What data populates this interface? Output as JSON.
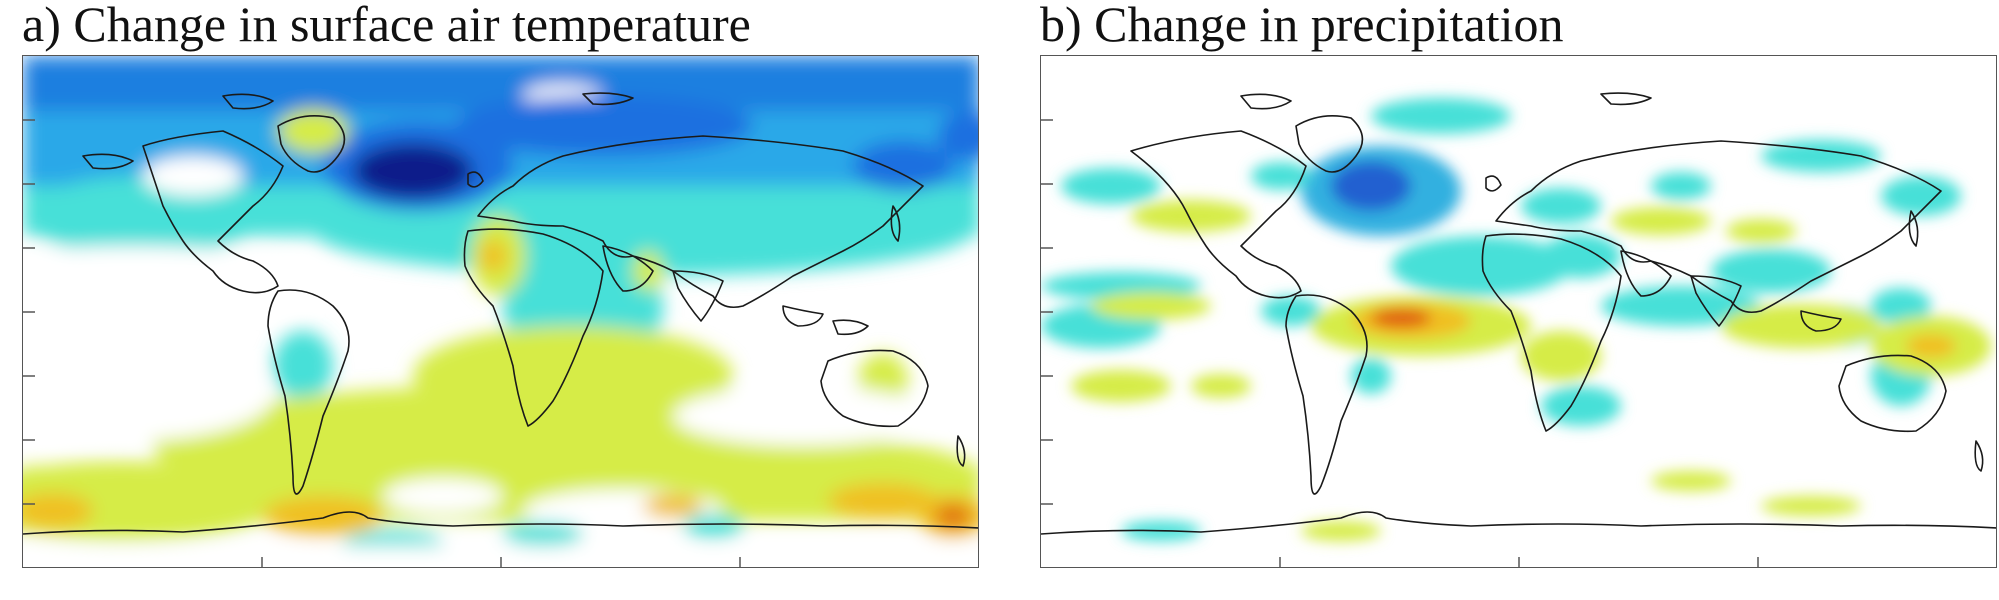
{
  "panels": [
    {
      "id": "a",
      "title": "a) Change in surface air temperature",
      "colormap": {
        "strong_cooling": "#0a1f8a",
        "cooling": "#1f6fe0",
        "moderate_cooling": "#2aa8e8",
        "slight_cooling": "#46e0d8",
        "slight_warming": "#d6ec46",
        "warming": "#f0c020",
        "strong_warming": "#e07010"
      }
    },
    {
      "id": "b",
      "title": "b) Change in precipitation",
      "colormap": {
        "decrease_strong": "#2060d0",
        "decrease": "#30b0e0",
        "decrease_slight": "#46e0d8",
        "increase_slight": "#d6ec46",
        "increase": "#f0c020",
        "increase_strong": "#e06010"
      }
    }
  ]
}
